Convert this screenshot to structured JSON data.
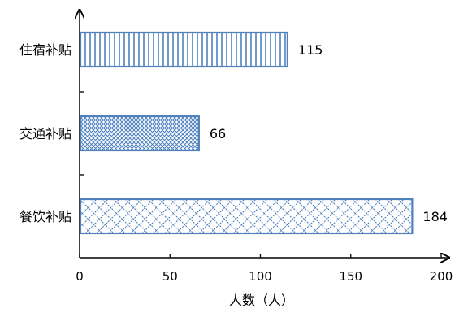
{
  "chart_data": {
    "type": "bar",
    "orientation": "horizontal",
    "categories": [
      "住宿补贴",
      "交通补贴",
      "餐饮补贴"
    ],
    "values": [
      115,
      66,
      184
    ],
    "xlabel": "人数（人）",
    "ylabel": "",
    "title": "",
    "xlim": [
      0,
      200
    ],
    "xticks": [
      "0",
      "50",
      "100",
      "150",
      "200"
    ],
    "grid": false,
    "legend": "none",
    "patterns": [
      "vertical-lines",
      "crosshatch",
      "zigzag"
    ],
    "colors": {
      "bar_stroke": "#4f81bd",
      "axis": "#000000"
    }
  }
}
